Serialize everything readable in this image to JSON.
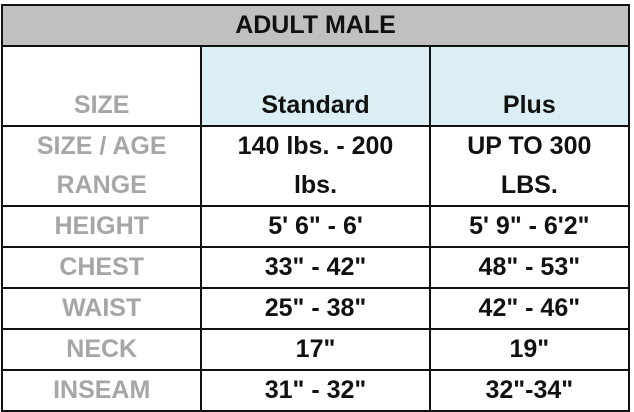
{
  "title": "ADULT MALE",
  "columns": {
    "label": "SIZE",
    "standard": "Standard",
    "plus": "Plus"
  },
  "rows": [
    {
      "label_lines": [
        "SIZE / AGE",
        "RANGE"
      ],
      "standard_lines": [
        "140 lbs. - 200",
        "lbs."
      ],
      "plus_lines": [
        "UP TO 300",
        "LBS."
      ]
    },
    {
      "label": "HEIGHT",
      "standard": "5' 6\" - 6'",
      "plus": "5' 9\" - 6'2\""
    },
    {
      "label": "CHEST",
      "standard": "33\" - 42\"",
      "plus": "48\" - 53\""
    },
    {
      "label": "WAIST",
      "standard": "25\" - 38\"",
      "plus": "42\" - 46\""
    },
    {
      "label": "NECK",
      "standard": "17\"",
      "plus": "19\""
    },
    {
      "label": "INSEAM",
      "standard": "31\" - 32\"",
      "plus": "32\"-34\""
    }
  ],
  "colors": {
    "title_bg": "#c0c0c0",
    "header_bg": "#dbeef3",
    "label_text": "#a6a6a6"
  }
}
